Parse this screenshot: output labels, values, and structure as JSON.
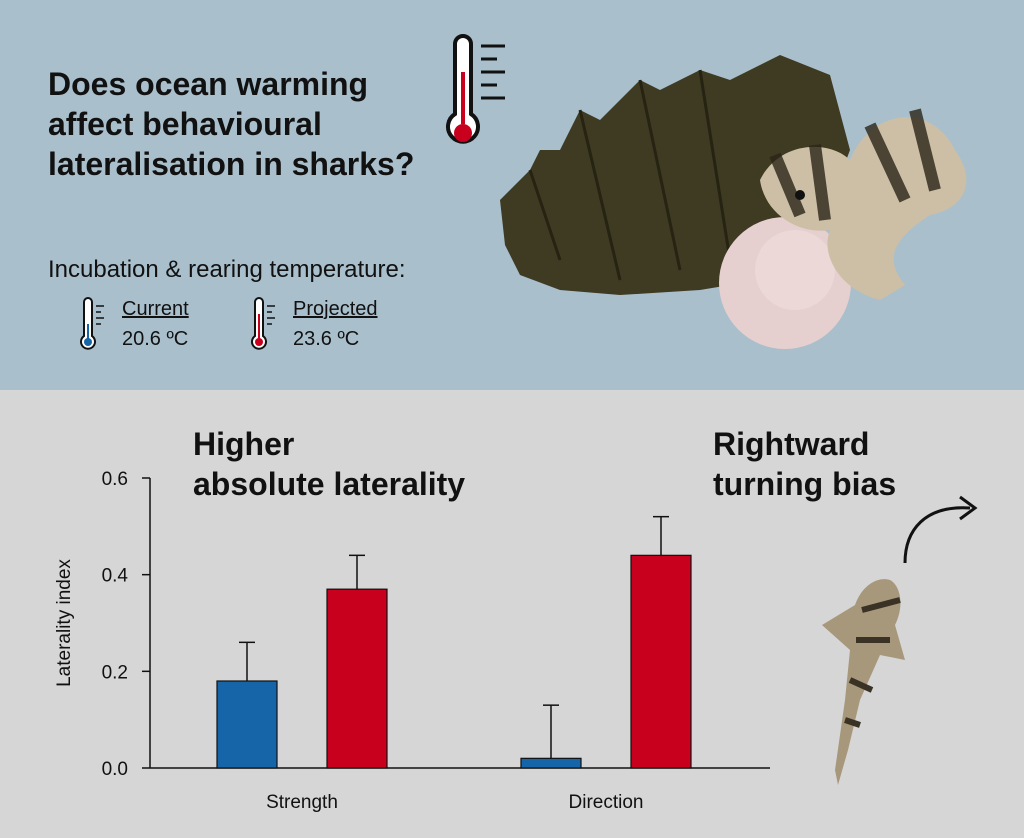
{
  "header": {
    "question": "Does ocean warming\naffect behavioural\nlateralisation in sharks?",
    "subtitle": "Incubation & rearing temperature:"
  },
  "conditions": [
    {
      "label": "Current",
      "value": "20.6 ºC",
      "color": "#1565a8"
    },
    {
      "label": "Projected",
      "value": "23.6 ºC",
      "color": "#c8001e"
    }
  ],
  "panels": {
    "strength_title": "Higher\nabsolute laterality",
    "direction_title": "Rightward\nturning bias"
  },
  "icons": [
    "thermometer-icon",
    "shark-egg-case-photo",
    "shark-hatchling-photo",
    "curved-arrow-icon"
  ],
  "chart_data": {
    "type": "bar",
    "categories": [
      "Strength",
      "Direction"
    ],
    "ylabel": "Laterality index",
    "ylim": [
      0,
      0.6
    ],
    "yticks": [
      "0.0",
      "0.2",
      "0.4",
      "0.6"
    ],
    "series": [
      {
        "name": "Current",
        "values": [
          0.18,
          0.02
        ],
        "errors": [
          0.08,
          0.11
        ],
        "color": "#1565a8"
      },
      {
        "name": "Projected",
        "values": [
          0.37,
          0.44
        ],
        "errors": [
          0.07,
          0.08
        ],
        "color": "#c8001e"
      }
    ]
  }
}
